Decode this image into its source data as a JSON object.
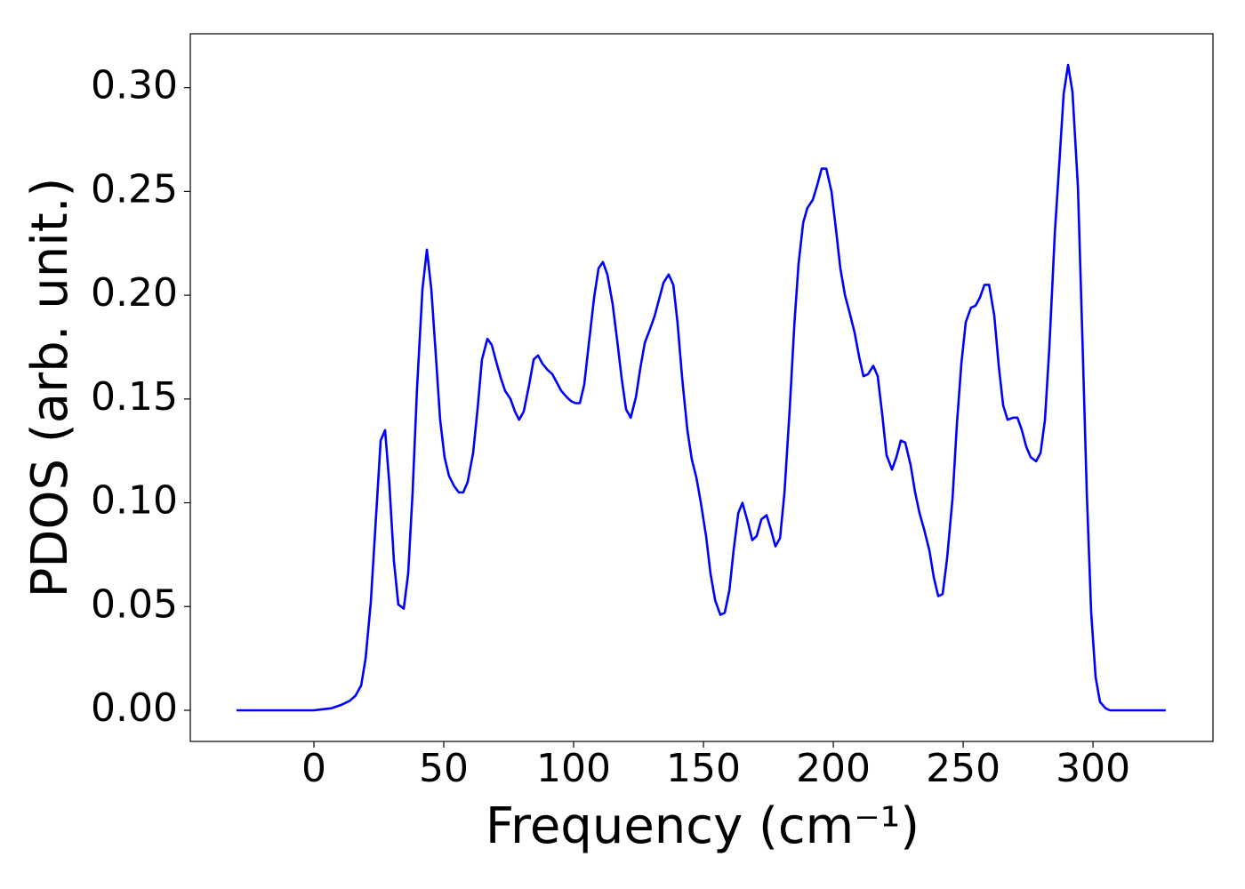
{
  "chart_data": {
    "type": "line",
    "xlabel": "Frequency (cm⁻¹)",
    "ylabel": "PDOS (arb. unit.)",
    "series": [
      {
        "color": "#0000ff",
        "x": [
          -29.8,
          0,
          3.4,
          6.8,
          10.3,
          13.7,
          16,
          18.2,
          19.9,
          21.9,
          24,
          25.7,
          27.4,
          29,
          30.8,
          32.5,
          34.6,
          36.3,
          38,
          39.7,
          41.8,
          43.5,
          45.2,
          47,
          48.6,
          50.3,
          52,
          54,
          55.8,
          57.5,
          59.2,
          61.3,
          63,
          64.7,
          66.8,
          68.5,
          70.2,
          72,
          73.6,
          75.7,
          77.4,
          79,
          80.8,
          82.9,
          84.6,
          86.3,
          88,
          90,
          91.8,
          93.5,
          95.2,
          97.3,
          99,
          100.7,
          102.4,
          104.1,
          105.8,
          107.9,
          109.6,
          111.3,
          113,
          115,
          116.8,
          118.5,
          120.2,
          122,
          124,
          125.7,
          127.4,
          129.5,
          131.2,
          132.9,
          134.6,
          136.6,
          138.4,
          140,
          141.8,
          143.8,
          145.5,
          147.3,
          149,
          151,
          152.7,
          154.5,
          156.5,
          158.2,
          160,
          161.6,
          163.4,
          165,
          167,
          168.8,
          170.5,
          172.3,
          174.3,
          176,
          177.7,
          179.5,
          181.2,
          183.2,
          185,
          186.6,
          188.4,
          190,
          192.1,
          193.8,
          195.5,
          197.3,
          199.3,
          201,
          202.7,
          204.5,
          206.2,
          208.2,
          210,
          211.6,
          213.4,
          215.4,
          217.1,
          218.8,
          220.5,
          222.6,
          224.3,
          226,
          227.7,
          229.8,
          231.5,
          233.2,
          235,
          237,
          238.7,
          240.4,
          242.1,
          243.8,
          245.9,
          247.6,
          249.3,
          251,
          253,
          254.8,
          256.5,
          258.2,
          260,
          262,
          263.7,
          265.4,
          267.1,
          269.2,
          270.9,
          272.6,
          274.3,
          276,
          278.1,
          279.8,
          281.5,
          283.2,
          285.3,
          287,
          288.7,
          290.4,
          292.1,
          294.2,
          295.9,
          297.6,
          299.3,
          301,
          302.7,
          304.8,
          306.5,
          328
        ],
        "values": [
          0,
          0,
          0.0005,
          0.001,
          0.0025,
          0.0045,
          0.007,
          0.012,
          0.025,
          0.052,
          0.095,
          0.13,
          0.135,
          0.11,
          0.072,
          0.051,
          0.049,
          0.066,
          0.105,
          0.155,
          0.203,
          0.222,
          0.203,
          0.17,
          0.14,
          0.122,
          0.113,
          0.108,
          0.105,
          0.105,
          0.11,
          0.124,
          0.145,
          0.169,
          0.179,
          0.176,
          0.168,
          0.16,
          0.154,
          0.15,
          0.144,
          0.14,
          0.144,
          0.157,
          0.169,
          0.171,
          0.167,
          0.164,
          0.162,
          0.158,
          0.154,
          0.151,
          0.149,
          0.148,
          0.148,
          0.157,
          0.176,
          0.199,
          0.213,
          0.216,
          0.21,
          0.196,
          0.178,
          0.16,
          0.145,
          0.141,
          0.151,
          0.165,
          0.177,
          0.184,
          0.19,
          0.198,
          0.206,
          0.21,
          0.205,
          0.187,
          0.16,
          0.135,
          0.121,
          0.112,
          0.1,
          0.084,
          0.066,
          0.053,
          0.046,
          0.047,
          0.058,
          0.077,
          0.095,
          0.1,
          0.091,
          0.082,
          0.084,
          0.092,
          0.094,
          0.087,
          0.079,
          0.083,
          0.105,
          0.145,
          0.186,
          0.215,
          0.235,
          0.242,
          0.246,
          0.253,
          0.261,
          0.261,
          0.25,
          0.232,
          0.213,
          0.2,
          0.192,
          0.182,
          0.17,
          0.161,
          0.162,
          0.166,
          0.161,
          0.143,
          0.123,
          0.116,
          0.122,
          0.13,
          0.129,
          0.118,
          0.105,
          0.095,
          0.087,
          0.077,
          0.064,
          0.055,
          0.056,
          0.073,
          0.102,
          0.138,
          0.167,
          0.187,
          0.194,
          0.195,
          0.199,
          0.205,
          0.205,
          0.19,
          0.166,
          0.147,
          0.14,
          0.141,
          0.141,
          0.135,
          0.127,
          0.122,
          0.12,
          0.124,
          0.14,
          0.175,
          0.23,
          0.263,
          0.297,
          0.311,
          0.298,
          0.252,
          0.18,
          0.105,
          0.047,
          0.016,
          0.004,
          0.001,
          0,
          0
        ]
      }
    ],
    "xlim": [
      -47.6,
      346.2
    ],
    "ylim": [
      -0.015,
      0.326
    ],
    "xticks": [
      0,
      50,
      100,
      150,
      200,
      250,
      300
    ],
    "yticks": [
      {
        "value": 0,
        "label": "0.00"
      },
      {
        "value": 0.05,
        "label": "0.05"
      },
      {
        "value": 0.1,
        "label": "0.10"
      },
      {
        "value": 0.15,
        "label": "0.15"
      },
      {
        "value": 0.2,
        "label": "0.20"
      },
      {
        "value": 0.25,
        "label": "0.25"
      },
      {
        "value": 0.3,
        "label": "0.30"
      }
    ],
    "grid": false
  }
}
